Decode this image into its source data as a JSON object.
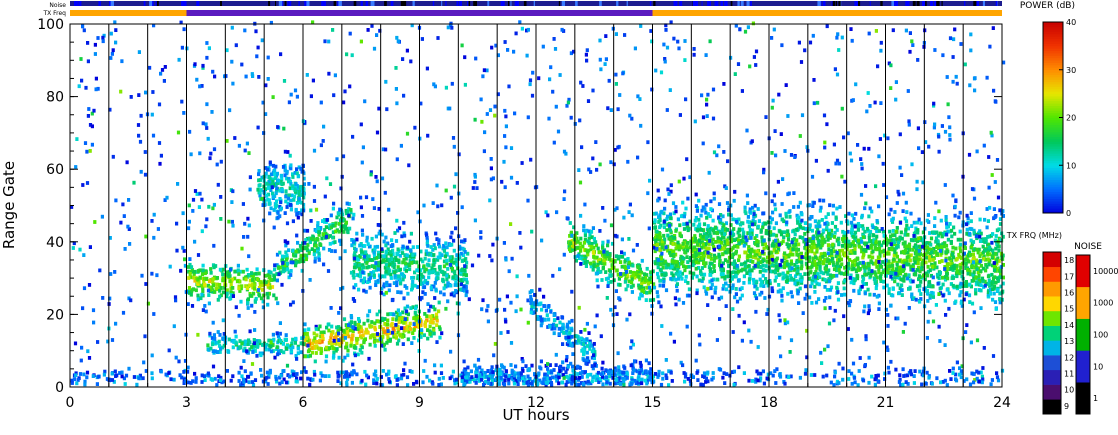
{
  "chart_data": {
    "type": "heatmap",
    "xlabel": "UT hours",
    "ylabel": "Range Gate",
    "xlim": [
      0,
      24
    ],
    "ylim": [
      0,
      100
    ],
    "x_ticks": [
      "0",
      "3",
      "6",
      "9",
      "12",
      "15",
      "18",
      "21",
      "24"
    ],
    "y_ticks": [
      "0",
      "20",
      "40",
      "60",
      "80",
      "100"
    ],
    "scan_boundaries_hours": [
      1,
      2,
      3,
      4,
      5,
      6,
      7,
      8,
      9,
      10,
      11,
      12,
      13,
      14,
      15,
      16,
      17,
      18,
      19,
      20,
      21,
      22,
      23
    ],
    "top_bars": {
      "noise_label": "Noise",
      "txfreq_label": "TX Freq",
      "txfreq_segments": [
        {
          "from": 0,
          "to": 3,
          "color": "#ffa500"
        },
        {
          "from": 3,
          "to": 15,
          "color": "#5a1bbf"
        },
        {
          "from": 15,
          "to": 24,
          "color": "#ffa500"
        }
      ]
    },
    "echo_regions": [
      {
        "desc": "band 3-5h",
        "x": [
          3.0,
          5.3
        ],
        "y_center": [
          29,
          27
        ],
        "width": 5,
        "level": 24
      },
      {
        "desc": "rising band 5-7h",
        "x": [
          5.3,
          7.2
        ],
        "y_center": [
          32,
          46
        ],
        "width": 5,
        "level": 18
      },
      {
        "desc": "patch 3.5-6h",
        "x": [
          3.5,
          6.0
        ],
        "y_center": [
          11,
          11
        ],
        "width": 3,
        "level": 14
      },
      {
        "desc": "main strong band",
        "x": [
          6.0,
          9.5
        ],
        "y_center": [
          11,
          18
        ],
        "width": 5,
        "level": 28
      },
      {
        "desc": "band 7-10h",
        "x": [
          7.2,
          10.2
        ],
        "y_center": [
          34,
          32
        ],
        "width": 8,
        "level": 15
      },
      {
        "desc": "patch 5-6h",
        "x": [
          4.8,
          6.0
        ],
        "y_center": [
          55,
          54
        ],
        "width": 8,
        "level": 12
      },
      {
        "desc": "descending 12-13.5h",
        "x": [
          11.8,
          13.5
        ],
        "y_center": [
          23,
          8
        ],
        "width": 4,
        "level": 10
      },
      {
        "desc": "descending 13-15h",
        "x": [
          12.8,
          15.0
        ],
        "y_center": [
          40,
          27
        ],
        "width": 6,
        "level": 22
      },
      {
        "desc": "ground band 15-24h",
        "x": [
          15.0,
          24.0
        ],
        "y_center": [
          38,
          34
        ],
        "width": 12,
        "level": 20
      },
      {
        "desc": "low gates 10-15h",
        "x": [
          10.0,
          15.0
        ],
        "y_center": [
          2,
          2
        ],
        "width": 4,
        "level": 8
      }
    ],
    "colorbars": {
      "power": {
        "title": "POWER (dB)",
        "ticks": [
          "0",
          "10",
          "20",
          "30",
          "40"
        ],
        "range": [
          0,
          40
        ]
      },
      "txfreq": {
        "title": "TX FRQ (MHz)",
        "ticks": [
          "9",
          "10",
          "11",
          "12",
          "13",
          "14",
          "15",
          "16",
          "17",
          "18"
        ]
      },
      "noise": {
        "title": "NOISE",
        "ticks": [
          "1",
          "10",
          "100",
          "1000",
          "10000"
        ]
      }
    }
  }
}
